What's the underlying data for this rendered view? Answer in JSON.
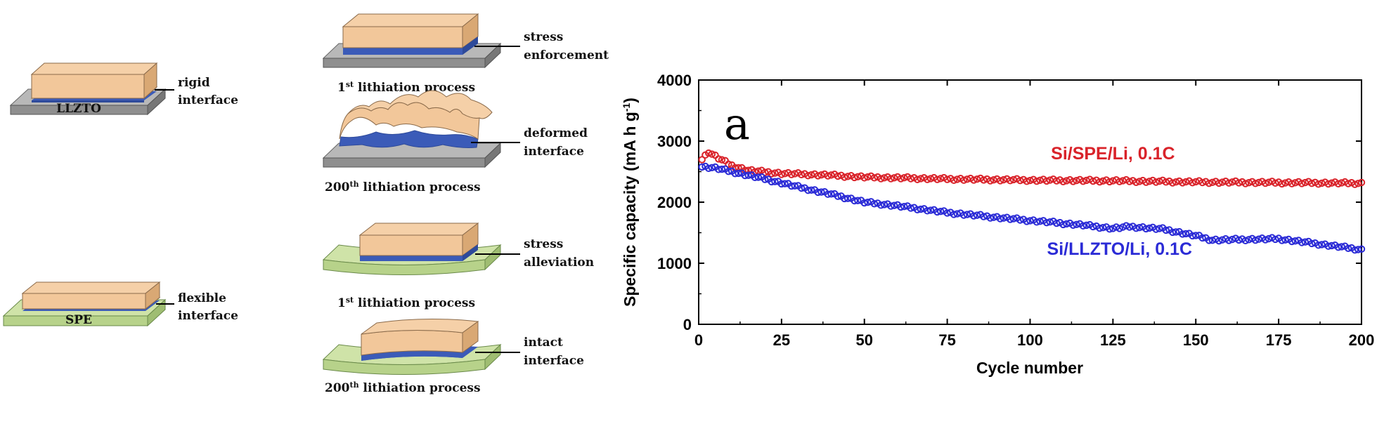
{
  "schematic": {
    "left": [
      {
        "substrate": "LLZTO",
        "interface": [
          "rigid",
          "interface"
        ]
      },
      {
        "substrate": "SPE",
        "interface": [
          "flexible",
          "interface"
        ]
      }
    ],
    "right": [
      {
        "label": [
          "stress",
          "enforcement"
        ],
        "caption_num": "1",
        "caption_sup": "st",
        "caption_rest": " lithiation process"
      },
      {
        "label": [
          "deformed",
          "interface"
        ],
        "caption_num": "200",
        "caption_sup": "th",
        "caption_rest": " lithiation process"
      },
      {
        "label": [
          "stress",
          "alleviation"
        ],
        "caption_num": "1",
        "caption_sup": "st",
        "caption_rest": " lithiation process"
      },
      {
        "label": [
          "intact",
          "interface"
        ],
        "caption_num": "200",
        "caption_sup": "th",
        "caption_rest": "  lithiation process"
      }
    ]
  },
  "chart_data": {
    "type": "scatter",
    "panel_label": "a",
    "xlabel": "Cycle number",
    "ylabel_main": "Specific capacity (mA h g",
    "ylabel_sup": "-1",
    "ylabel_end": ")",
    "xlim": [
      0,
      200
    ],
    "ylim": [
      0,
      4000
    ],
    "xticks": [
      0,
      25,
      50,
      75,
      100,
      125,
      150,
      175,
      200
    ],
    "yticks": [
      0,
      1000,
      2000,
      3000,
      4000
    ],
    "series": [
      {
        "name": "Si/SPE/Li, 0.1C",
        "color": "#d9232a",
        "label_at": [
          125,
          2700
        ],
        "key_points": [
          [
            1,
            2700
          ],
          [
            3,
            2820
          ],
          [
            6,
            2720
          ],
          [
            10,
            2600
          ],
          [
            15,
            2520
          ],
          [
            25,
            2470
          ],
          [
            40,
            2440
          ],
          [
            50,
            2410
          ],
          [
            75,
            2380
          ],
          [
            100,
            2360
          ],
          [
            125,
            2350
          ],
          [
            150,
            2330
          ],
          [
            175,
            2320
          ],
          [
            200,
            2310
          ]
        ]
      },
      {
        "name": "Si/LLZTO/Li, 0.1C",
        "color": "#2b2bd6",
        "label_at": [
          127,
          1140
        ],
        "key_points": [
          [
            1,
            2580
          ],
          [
            5,
            2560
          ],
          [
            10,
            2500
          ],
          [
            20,
            2380
          ],
          [
            30,
            2250
          ],
          [
            40,
            2130
          ],
          [
            50,
            2000
          ],
          [
            60,
            1940
          ],
          [
            75,
            1830
          ],
          [
            90,
            1750
          ],
          [
            100,
            1700
          ],
          [
            115,
            1630
          ],
          [
            125,
            1570
          ],
          [
            130,
            1600
          ],
          [
            140,
            1560
          ],
          [
            150,
            1450
          ],
          [
            155,
            1380
          ],
          [
            165,
            1390
          ],
          [
            175,
            1400
          ],
          [
            185,
            1330
          ],
          [
            195,
            1260
          ],
          [
            200,
            1220
          ]
        ]
      }
    ]
  }
}
